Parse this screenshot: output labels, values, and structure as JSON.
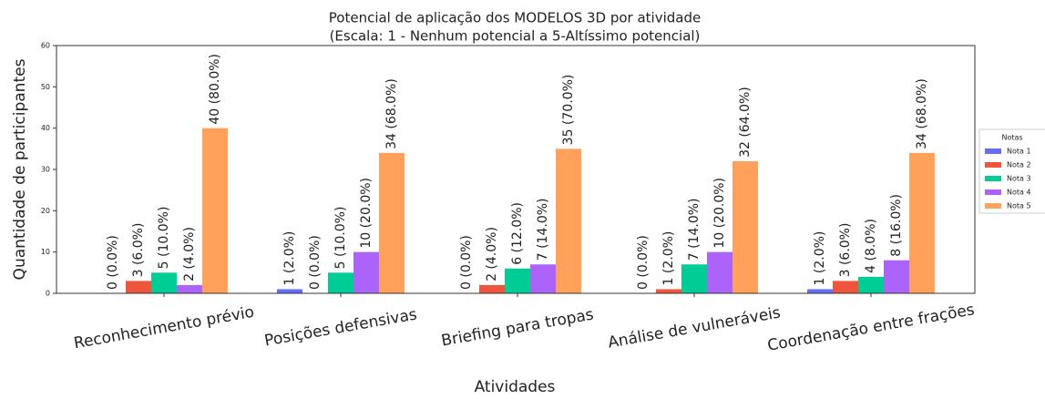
{
  "chart_data": {
    "type": "bar",
    "title": "Potencial de aplicação dos MODELOS 3D por atividade",
    "subtitle": "(Escala: 1 - Nenhum potencial a 5-Altíssimo potencial)",
    "x_label": "Atividades",
    "y_label": "Quantidade de participantes",
    "categories": [
      "Reconhecimento prévio",
      "Posições defensivas",
      "Briefing para tropas",
      "Análise de vulneráveis",
      "Coordenação entre frações"
    ],
    "series": [
      {
        "name": "Nota 1",
        "color": "#636efa",
        "values": [
          0,
          1,
          0,
          0,
          1
        ],
        "value_labels": [
          "0 (0.0%)",
          "1 (2.0%)",
          "0 (0.0%)",
          "0 (0.0%)",
          "1 (2.0%)"
        ]
      },
      {
        "name": "Nota 2",
        "color": "#ef553b",
        "values": [
          3,
          0,
          2,
          1,
          3
        ],
        "value_labels": [
          "3 (6.0%)",
          "0 (0.0%)",
          "2 (4.0%)",
          "1 (2.0%)",
          "3 (6.0%)"
        ]
      },
      {
        "name": "Nota 3",
        "color": "#00cc96",
        "values": [
          5,
          5,
          6,
          7,
          4
        ],
        "value_labels": [
          "5 (10.0%)",
          "5 (10.0%)",
          "6 (12.0%)",
          "7 (14.0%)",
          "4 (8.0%)"
        ]
      },
      {
        "name": "Nota 4",
        "color": "#ab63fa",
        "values": [
          2,
          10,
          7,
          10,
          8
        ],
        "value_labels": [
          "2 (4.0%)",
          "10 (20.0%)",
          "7 (14.0%)",
          "10 (20.0%)",
          "8 (16.0%)"
        ]
      },
      {
        "name": "Nota 5",
        "color": "#ffa15a",
        "values": [
          40,
          34,
          35,
          32,
          34
        ],
        "value_labels": [
          "40 (80.0%)",
          "34 (68.0%)",
          "35 (70.0%)",
          "32 (64.0%)",
          "34 (68.0%)"
        ]
      }
    ],
    "legend_title": "Notas",
    "legend": "right",
    "ylim": [
      0,
      60
    ],
    "yticks": [
      0,
      10,
      20,
      30,
      40,
      50,
      60
    ]
  }
}
